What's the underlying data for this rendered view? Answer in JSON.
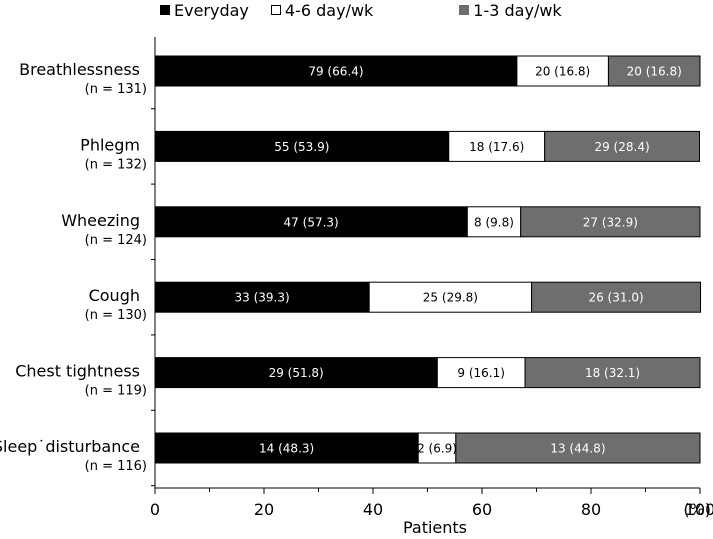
{
  "chart_data": {
    "type": "bar",
    "orientation": "horizontal",
    "stacked": true,
    "categories": [
      "Breathlessness",
      "Phlegm",
      "Wheezing",
      "Cough",
      "Chest tightness",
      "Sleep disturbance"
    ],
    "category_display": [
      "Breathlessness",
      "Phlegm",
      "Wheezing",
      "Cough",
      "Chest tightness",
      "Sleep˙disturbance"
    ],
    "n_labels": [
      "(n = 131)",
      "(n = 132)",
      "(n = 124)",
      "(n = 130)",
      "(n = 119)",
      "(n = 116)"
    ],
    "series": [
      {
        "name": "Everyday",
        "color": "#000000",
        "text_color": "#ffffff",
        "values": [
          66.4,
          53.9,
          57.3,
          39.3,
          51.8,
          48.3
        ],
        "labels": [
          "79 (66.4)",
          "55 (53.9)",
          "47 (57.3)",
          "33 (39.3)",
          "29 (51.8)",
          "14 (48.3)"
        ]
      },
      {
        "name": "4-6 day/wk",
        "color": "#ffffff",
        "text_color": "#000000",
        "values": [
          16.8,
          17.6,
          9.8,
          29.8,
          16.1,
          6.9
        ],
        "labels": [
          "20 (16.8)",
          "18 (17.6)",
          "8 (9.8)",
          "25 (29.8)",
          "9 (16.1)",
          "2 (6.9)"
        ]
      },
      {
        "name": "1-3 day/wk",
        "color": "#6e6e6e",
        "text_color": "#ffffff",
        "values": [
          16.8,
          28.4,
          32.9,
          31.0,
          32.1,
          44.8
        ],
        "labels": [
          "20 (16.8)",
          "29 (28.4)",
          "27 (32.9)",
          "26 (31.0)",
          "18 (32.1)",
          "13 (44.8)"
        ]
      }
    ],
    "xlabel": "Patients",
    "x_unit": "(%)",
    "xlim": [
      0,
      100
    ],
    "xticks": [
      0,
      20,
      40,
      60,
      80,
      100
    ],
    "grid": false,
    "legend_position": "top"
  }
}
